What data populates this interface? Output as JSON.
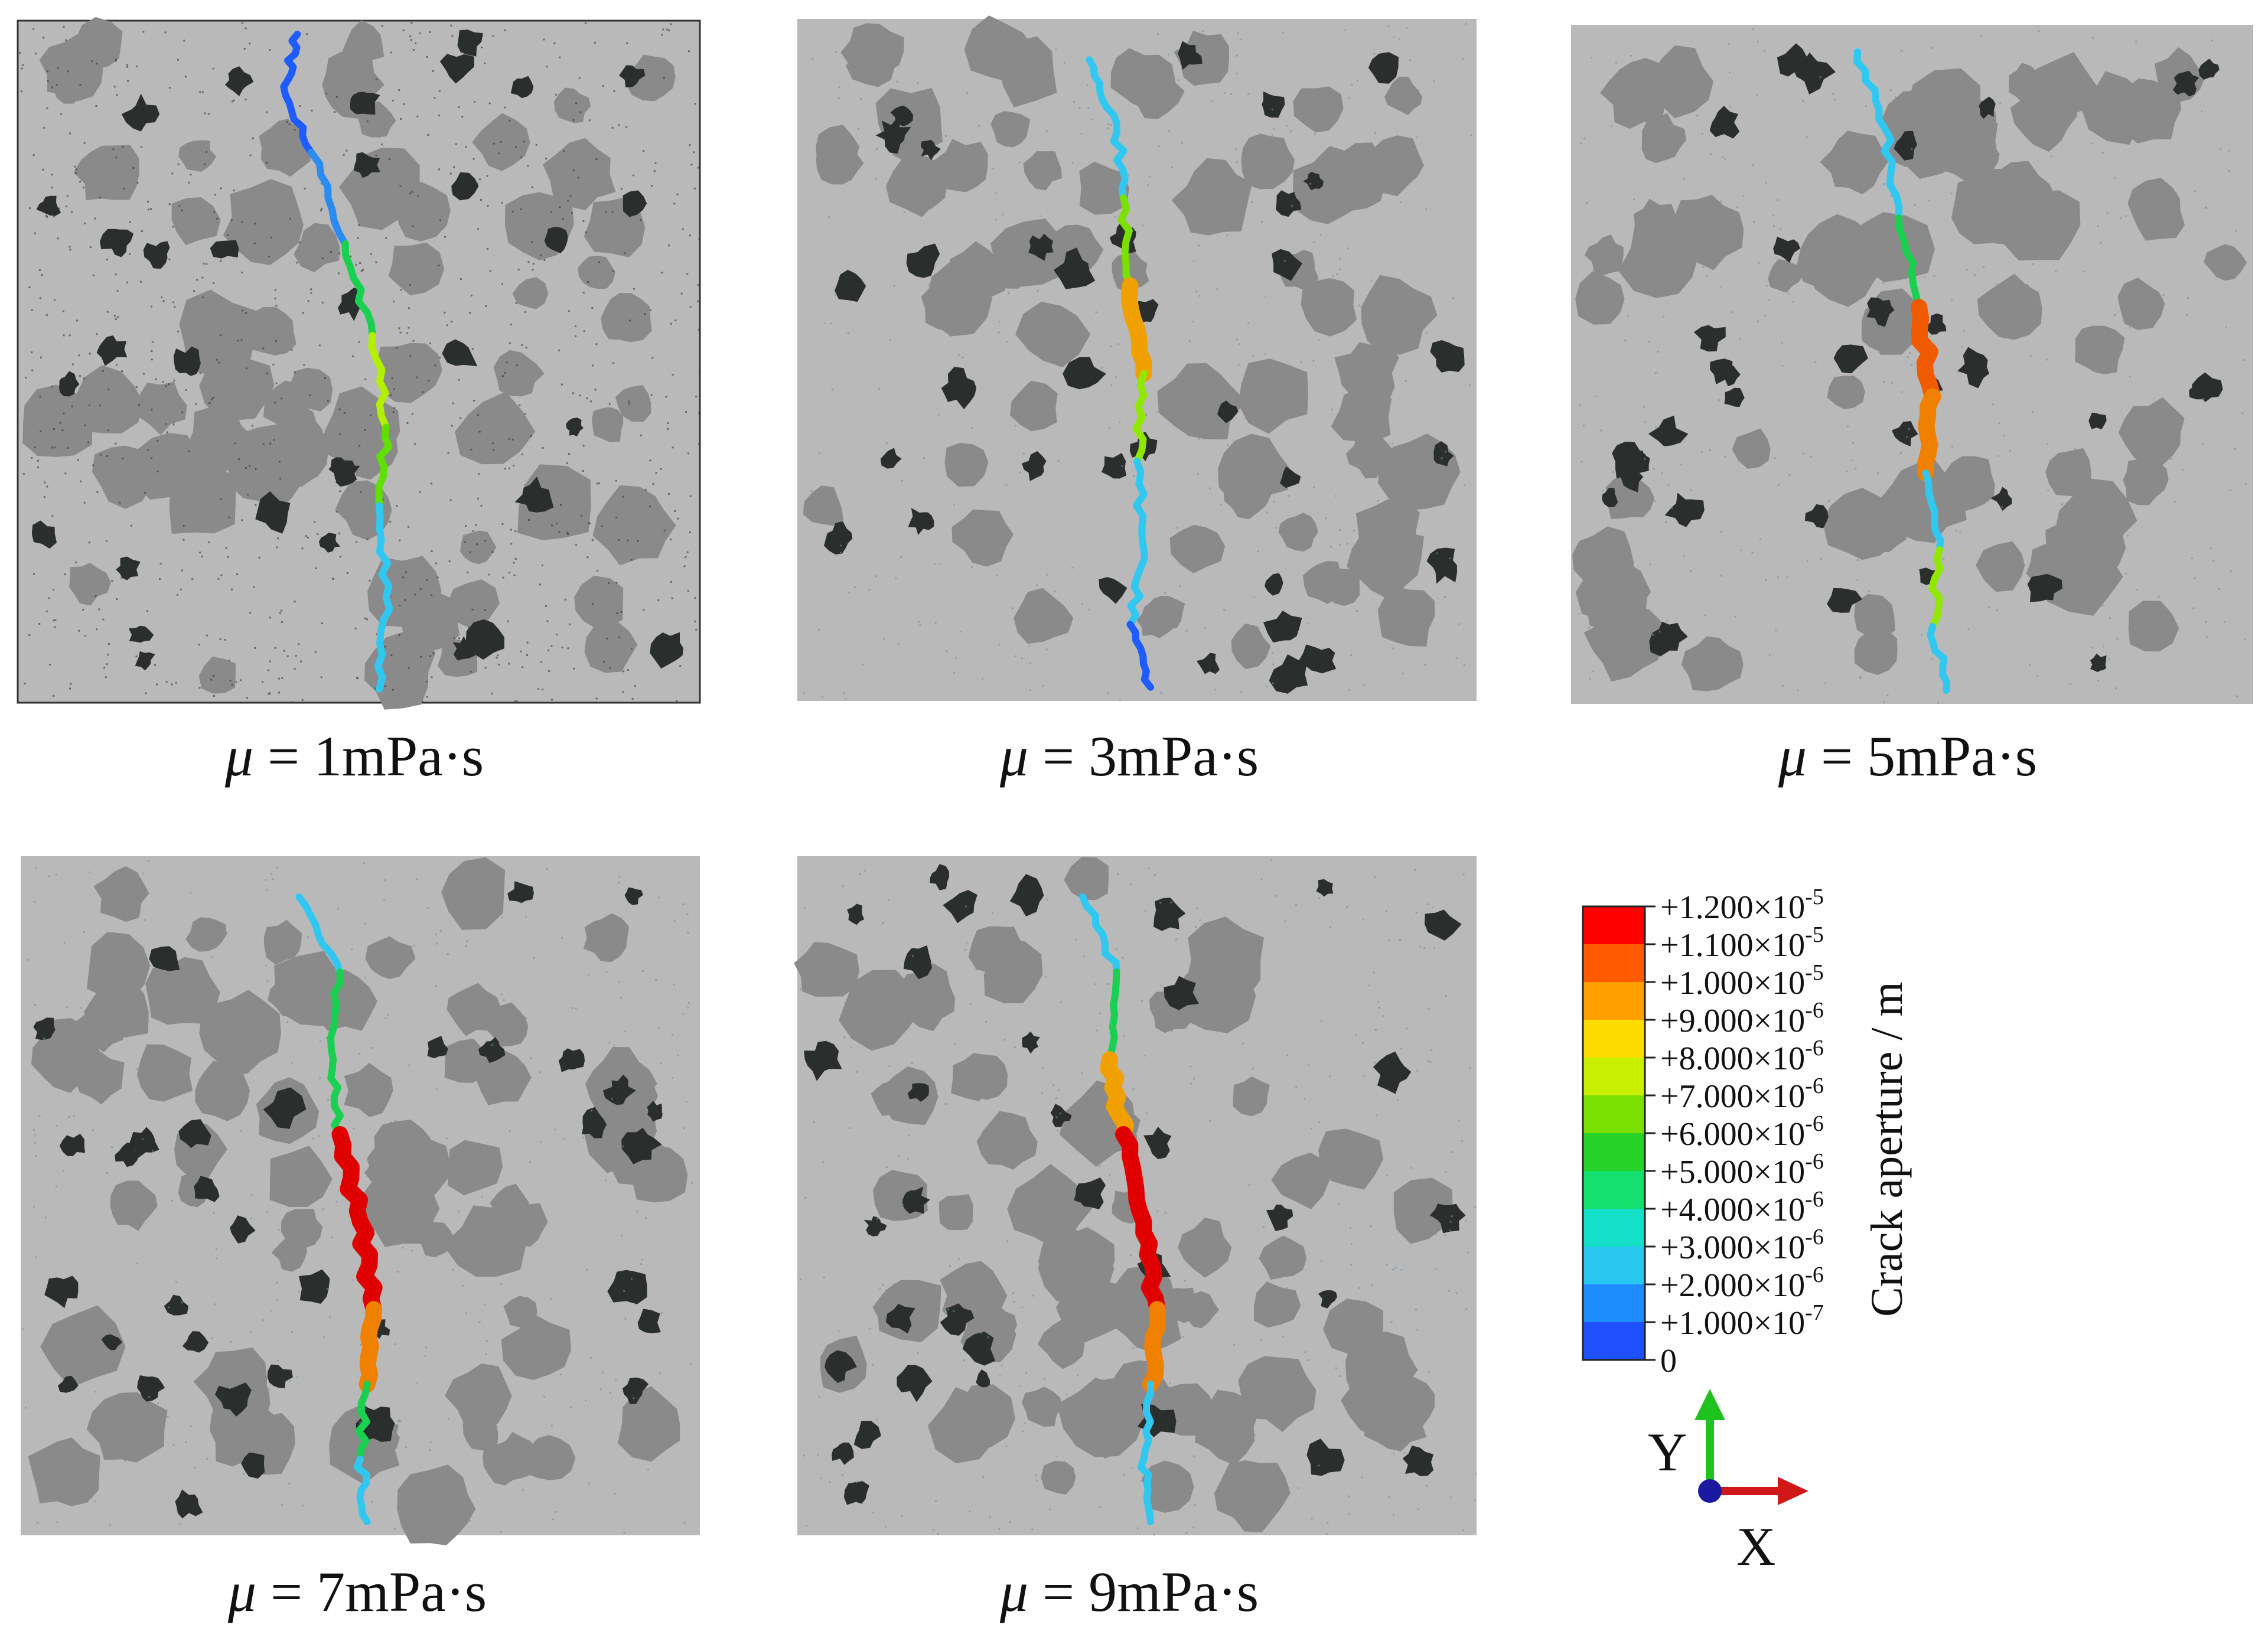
{
  "panels": [
    {
      "id": "p1",
      "caption_symbol": "μ",
      "caption_rest": " = 1mPa·s",
      "seed": 11,
      "bordered": true,
      "crack": {
        "top": 0.02,
        "bottom": 0.98,
        "path": [
          [
            0.41,
            0.0
          ],
          [
            0.39,
            0.08
          ],
          [
            0.43,
            0.18
          ],
          [
            0.48,
            0.32
          ],
          [
            0.52,
            0.46
          ],
          [
            0.54,
            0.6
          ],
          [
            0.53,
            0.72
          ],
          [
            0.54,
            0.86
          ],
          [
            0.53,
            1.0
          ]
        ],
        "colors": [
          "#1e5cff",
          "#1e5cff",
          "#2a8cf0",
          "#19d050",
          "#b0f000",
          "#60e000",
          "#30c8f0",
          "#30c8f0",
          "#1e6cff"
        ]
      }
    },
    {
      "id": "p2",
      "caption_symbol": "μ",
      "caption_rest": " = 3mPa·s",
      "seed": 23,
      "bordered": false,
      "crack": {
        "top": 0.06,
        "bottom": 0.98,
        "path": [
          [
            0.43,
            0.0
          ],
          [
            0.47,
            0.1
          ],
          [
            0.48,
            0.22
          ],
          [
            0.49,
            0.36
          ],
          [
            0.51,
            0.5
          ],
          [
            0.5,
            0.64
          ],
          [
            0.51,
            0.78
          ],
          [
            0.49,
            0.9
          ],
          [
            0.52,
            1.0
          ]
        ],
        "colors": [
          "#30c8f0",
          "#30c8f0",
          "#7ae000",
          "#f0a000",
          "#90e800",
          "#30c8f0",
          "#30c8f0",
          "#1e5cff",
          "#1e5cff"
        ]
      }
    },
    {
      "id": "p3",
      "caption_symbol": "μ",
      "caption_rest": " = 5mPa·s",
      "seed": 37,
      "bordered": false,
      "crack": {
        "top": 0.04,
        "bottom": 0.98,
        "path": [
          [
            0.42,
            0.0
          ],
          [
            0.46,
            0.12
          ],
          [
            0.48,
            0.26
          ],
          [
            0.51,
            0.4
          ],
          [
            0.53,
            0.54
          ],
          [
            0.52,
            0.66
          ],
          [
            0.54,
            0.78
          ],
          [
            0.53,
            0.9
          ],
          [
            0.55,
            1.0
          ]
        ],
        "colors": [
          "#30c8f0",
          "#30c8f0",
          "#19d050",
          "#f05a00",
          "#f08000",
          "#30c8f0",
          "#90e800",
          "#30c8f0",
          "#30c8f0"
        ]
      }
    },
    {
      "id": "p4",
      "caption_symbol": "μ",
      "caption_rest": " = 7mPa·s",
      "seed": 53,
      "bordered": false,
      "crack": {
        "top": 0.06,
        "bottom": 0.98,
        "path": [
          [
            0.41,
            0.0
          ],
          [
            0.47,
            0.12
          ],
          [
            0.46,
            0.26
          ],
          [
            0.47,
            0.38
          ],
          [
            0.5,
            0.52
          ],
          [
            0.52,
            0.66
          ],
          [
            0.51,
            0.78
          ],
          [
            0.5,
            0.9
          ],
          [
            0.51,
            1.0
          ]
        ],
        "colors": [
          "#30c8f0",
          "#19d050",
          "#19d050",
          "#e00000",
          "#e00000",
          "#f08000",
          "#19d050",
          "#30c8f0",
          "#30c8f0"
        ]
      }
    },
    {
      "id": "p5",
      "caption_symbol": "μ",
      "caption_rest": " = 9mPa·s",
      "seed": 71,
      "bordered": false,
      "crack": {
        "top": 0.06,
        "bottom": 0.98,
        "path": [
          [
            0.42,
            0.0
          ],
          [
            0.47,
            0.12
          ],
          [
            0.46,
            0.26
          ],
          [
            0.48,
            0.38
          ],
          [
            0.51,
            0.52
          ],
          [
            0.53,
            0.66
          ],
          [
            0.52,
            0.78
          ],
          [
            0.51,
            0.9
          ],
          [
            0.52,
            1.0
          ]
        ],
        "colors": [
          "#30c8f0",
          "#19d050",
          "#f0a000",
          "#e00000",
          "#e00000",
          "#f08000",
          "#30c8f0",
          "#30c8f0",
          "#30c8f0"
        ]
      }
    }
  ],
  "legend": {
    "title": "Crack aperture / m",
    "entries": [
      {
        "label": "+1.200×10",
        "exp": "-5",
        "color": "#ff0000"
      },
      {
        "label": "+1.100×10",
        "exp": "-5",
        "color": "#ff5a00"
      },
      {
        "label": "+1.000×10",
        "exp": "-5",
        "color": "#ffa000"
      },
      {
        "label": "+9.000×10",
        "exp": "-6",
        "color": "#ffdc00"
      },
      {
        "label": "+8.000×10",
        "exp": "-6",
        "color": "#c8f000"
      },
      {
        "label": "+7.000×10",
        "exp": "-6",
        "color": "#7ae000"
      },
      {
        "label": "+6.000×10",
        "exp": "-6",
        "color": "#28d228"
      },
      {
        "label": "+5.000×10",
        "exp": "-6",
        "color": "#14e070"
      },
      {
        "label": "+4.000×10",
        "exp": "-6",
        "color": "#14e0c8"
      },
      {
        "label": "+3.000×10",
        "exp": "-6",
        "color": "#28c8f0"
      },
      {
        "label": "+2.000×10",
        "exp": "-6",
        "color": "#1e8cff"
      },
      {
        "label": "+1.000×10",
        "exp": "-7",
        "color": "#1e50ff"
      },
      {
        "label": "0",
        "exp": "",
        "color": "#0a0ae6"
      }
    ]
  },
  "axes": {
    "y_label": "Y",
    "x_label": "X"
  },
  "colors": {
    "matrix": "#b9b9b9",
    "aggregate": "#8a8a8a",
    "void": "#2a2e2c",
    "y_arrow": "#1fc21f",
    "x_arrow": "#d01818",
    "origin": "#1a1aa0"
  }
}
